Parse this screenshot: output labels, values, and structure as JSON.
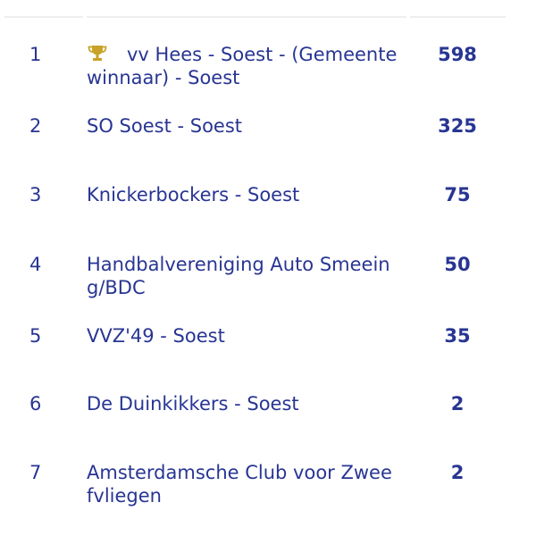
{
  "ranking": [
    {
      "rank": "1",
      "club_line1": "vv Hees - Soest - (Gemeente",
      "club_line2": "winnaar) - Soest",
      "score": "598",
      "winner": true
    },
    {
      "rank": "2",
      "club_line1": "SO Soest - Soest",
      "club_line2": "",
      "score": "325",
      "winner": false
    },
    {
      "rank": "3",
      "club_line1": "Knickerbockers - Soest",
      "club_line2": "",
      "score": "75",
      "winner": false
    },
    {
      "rank": "4",
      "club_line1": "Handbalvereniging Auto Smeein",
      "club_line2": "g/BDC",
      "score": "50",
      "winner": false
    },
    {
      "rank": "5",
      "club_line1": "VVZ'49 - Soest",
      "club_line2": "",
      "score": "35",
      "winner": false
    },
    {
      "rank": "6",
      "club_line1": "De Duinkikkers - Soest",
      "club_line2": "",
      "score": "2",
      "winner": false
    },
    {
      "rank": "7",
      "club_line1": "Amsterdamsche Club voor Zwee",
      "club_line2": "fvliegen",
      "score": "2",
      "winner": false
    }
  ],
  "colors": {
    "text": "#283593",
    "trophy": "#c9a227",
    "divider": "#eeeeee"
  },
  "icons": {
    "winner": "trophy-icon"
  }
}
